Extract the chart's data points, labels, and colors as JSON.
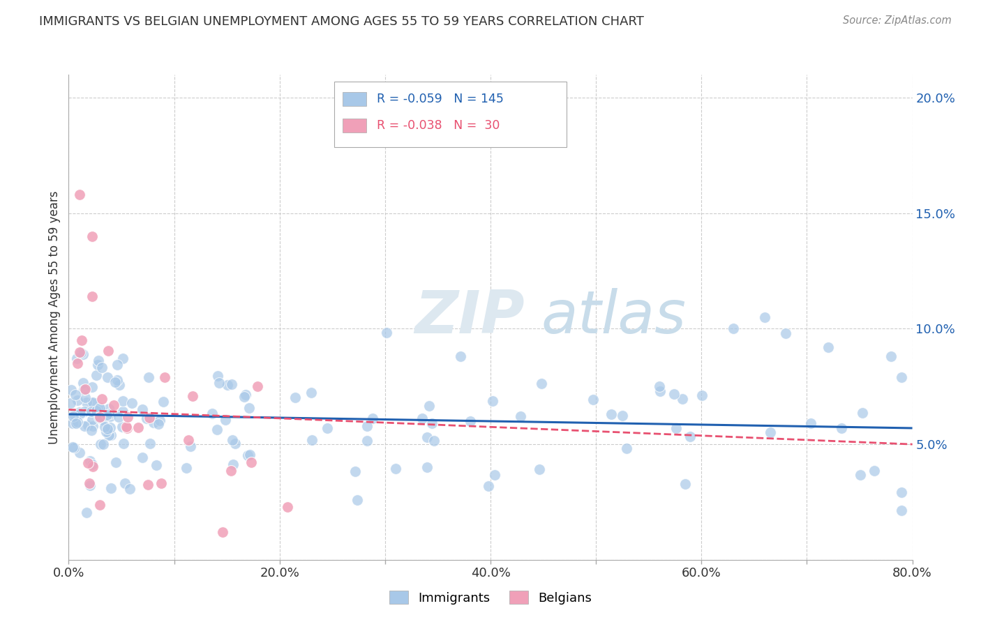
{
  "title": "IMMIGRANTS VS BELGIAN UNEMPLOYMENT AMONG AGES 55 TO 59 YEARS CORRELATION CHART",
  "source": "Source: ZipAtlas.com",
  "ylabel": "Unemployment Among Ages 55 to 59 years",
  "xlim": [
    0.0,
    0.8
  ],
  "ylim": [
    0.0,
    0.21
  ],
  "xticks": [
    0.0,
    0.1,
    0.2,
    0.3,
    0.4,
    0.5,
    0.6,
    0.7,
    0.8
  ],
  "xticklabels": [
    "0.0%",
    "",
    "20.0%",
    "",
    "40.0%",
    "",
    "60.0%",
    "",
    "80.0%"
  ],
  "yticks": [
    0.0,
    0.05,
    0.1,
    0.15,
    0.2
  ],
  "yticklabels_right": [
    "",
    "5.0%",
    "10.0%",
    "15.0%",
    "20.0%"
  ],
  "immigrant_color": "#a8c8e8",
  "belgian_color": "#f0a0b8",
  "trend_immigrant_color": "#2060b0",
  "trend_belgian_color": "#e85070",
  "legend_r_immigrant": "-0.059",
  "legend_n_immigrant": "145",
  "legend_r_belgian": "-0.038",
  "legend_n_belgian": "30",
  "watermark_zip": "ZIP",
  "watermark_atlas": "atlas",
  "imm_trend_x0": 0.0,
  "imm_trend_y0": 0.063,
  "imm_trend_x1": 0.8,
  "imm_trend_y1": 0.057,
  "bel_trend_x0": 0.0,
  "bel_trend_y0": 0.065,
  "bel_trend_x1": 0.8,
  "bel_trend_y1": 0.05
}
